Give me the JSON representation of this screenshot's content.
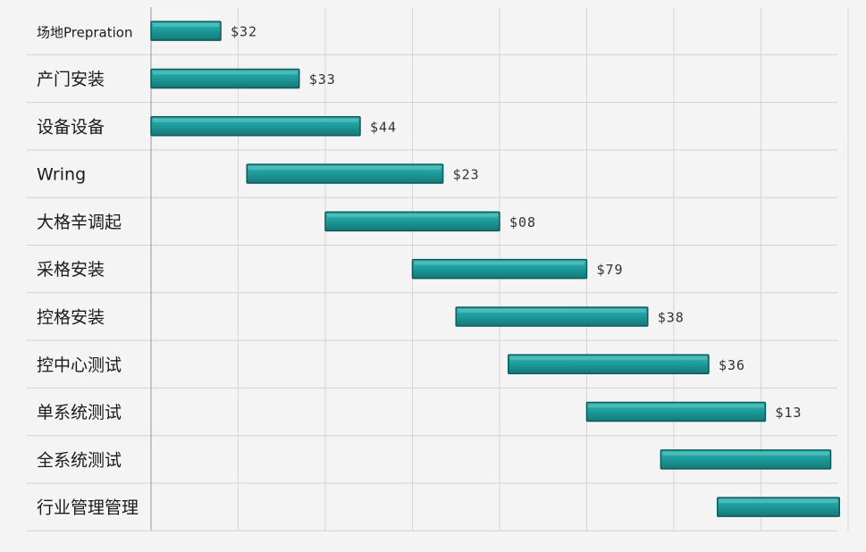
{
  "chart_data": {
    "type": "bar",
    "subtype": "gantt",
    "grid": true,
    "bar_color": "#1e9c9c",
    "bar_edge_color": "#0d5a5a",
    "tasks": [
      {
        "label": "场地Prepration",
        "start": 0.0,
        "end": 0.8,
        "value_label": "$32"
      },
      {
        "label": "产门安装",
        "start": 0.0,
        "end": 1.7,
        "value_label": "$33"
      },
      {
        "label": "设备设备",
        "start": 0.0,
        "end": 2.4,
        "value_label": "$44"
      },
      {
        "label": "Wring",
        "start": 1.1,
        "end": 3.35,
        "value_label": "$23"
      },
      {
        "label": "大格辛调起",
        "start": 2.0,
        "end": 4.0,
        "value_label": "$08"
      },
      {
        "label": "采格安装",
        "start": 3.0,
        "end": 5.0,
        "value_label": "$79"
      },
      {
        "label": "控格安装",
        "start": 3.5,
        "end": 5.7,
        "value_label": "$38"
      },
      {
        "label": "控中心测试",
        "start": 4.1,
        "end": 6.4,
        "value_label": "$36"
      },
      {
        "label": "单系统测试",
        "start": 5.0,
        "end": 7.05,
        "value_label": "$13"
      },
      {
        "label": "全系统测试",
        "start": 5.85,
        "end": 7.8,
        "value_label": ""
      },
      {
        "label": "行业管理管理",
        "start": 6.5,
        "end": 7.9,
        "value_label": ""
      }
    ]
  }
}
